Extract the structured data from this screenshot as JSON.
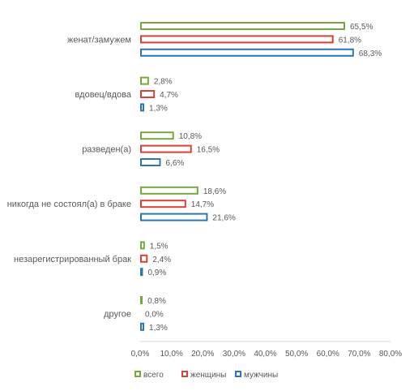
{
  "chart_data": {
    "type": "bar",
    "orientation": "horizontal",
    "categories": [
      "женат/замужем",
      "вдовец/вдова",
      "разведен(а)",
      "никогда не состоял(а) в браке",
      "незарегистрированный брак",
      "другое"
    ],
    "series": [
      {
        "name": "всего",
        "color": "#77a83e",
        "values": [
          65.5,
          2.8,
          10.8,
          18.6,
          1.5,
          0.8
        ],
        "labels": [
          "65,5%",
          "2,8%",
          "10,8%",
          "18,6%",
          "1,5%",
          "0,8%"
        ]
      },
      {
        "name": "женщины",
        "color": "#d9403a",
        "values": [
          61.8,
          4.7,
          16.5,
          14.7,
          2.4,
          0.0
        ],
        "labels": [
          "61,8%",
          "4,7%",
          "16,5%",
          "14,7%",
          "2,4%",
          "0,0%"
        ]
      },
      {
        "name": "мужчины",
        "color": "#2e75b6",
        "values": [
          68.3,
          1.3,
          6.6,
          21.6,
          0.9,
          1.3
        ],
        "labels": [
          "68,3%",
          "1,3%",
          "6,6%",
          "21,6%",
          "0,9%",
          "1,3%"
        ]
      }
    ],
    "xlim": [
      0,
      80
    ],
    "xticks": [
      "0,0%",
      "10,0%",
      "20,0%",
      "30,0%",
      "40,0%",
      "50,0%",
      "60,0%",
      "70,0%",
      "80,0%"
    ],
    "grid": false,
    "legend": "bottom",
    "title": "",
    "xlabel": "",
    "ylabel": ""
  }
}
